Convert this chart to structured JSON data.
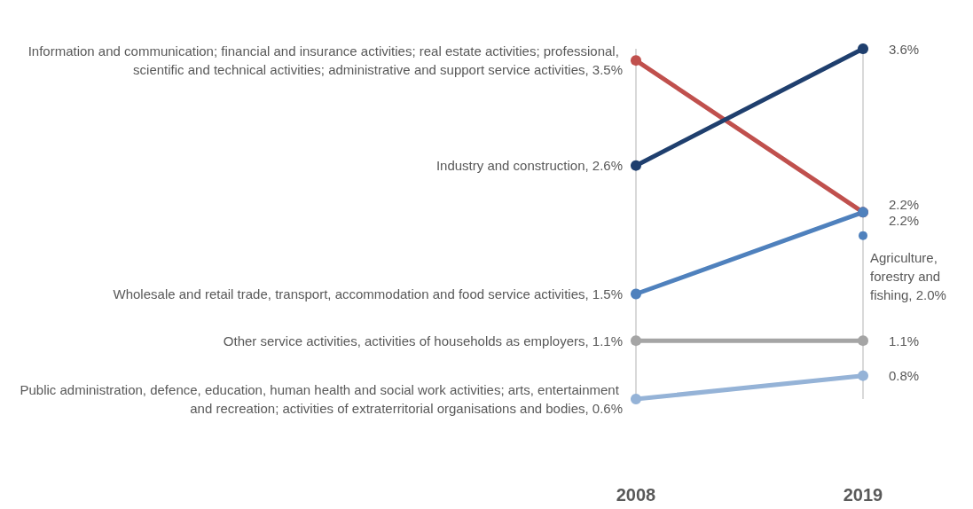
{
  "chart_data": {
    "type": "line",
    "categories": [
      "2008",
      "2019"
    ],
    "grid": "x",
    "legend": false,
    "marker": "circle",
    "line_style": "solid",
    "series": [
      {
        "name": "Information and communication; financial and insurance activities; real estate activities; professional, scientific and technical activities; administrative and support service activities,",
        "color": "#c0504d",
        "values": [
          3.5,
          2.2
        ],
        "value_labels": [
          "3.5%",
          "2.2%"
        ]
      },
      {
        "name": "Industry and construction,",
        "color": "#1f3f6e",
        "values": [
          2.6,
          3.6
        ],
        "value_labels": [
          "2.6%",
          "3.6%"
        ]
      },
      {
        "name": "Wholesale and retail trade, transport, accommodation and food service activities,",
        "color": "#4f81bd",
        "values": [
          1.5,
          2.2
        ],
        "value_labels": [
          "1.5%",
          "2.2%"
        ]
      },
      {
        "name": "Agriculture, forestry and fishing,",
        "color": "#4f81bd",
        "values": [
          null,
          2.0
        ],
        "value_labels": [
          null,
          "2.0%"
        ]
      },
      {
        "name": "Other service activities, activities of households as employers,",
        "color": "#a5a5a5",
        "values": [
          1.1,
          1.1
        ],
        "value_labels": [
          "1.1%",
          "1.1%"
        ]
      },
      {
        "name": "Public administration, defence, education, human health and social work activities; arts, entertainment and recreation; activities of extraterritorial organisations and bodies,",
        "color": "#95b3d7",
        "values": [
          0.6,
          0.8
        ],
        "value_labels": [
          "0.6%",
          "0.8%"
        ]
      }
    ]
  }
}
